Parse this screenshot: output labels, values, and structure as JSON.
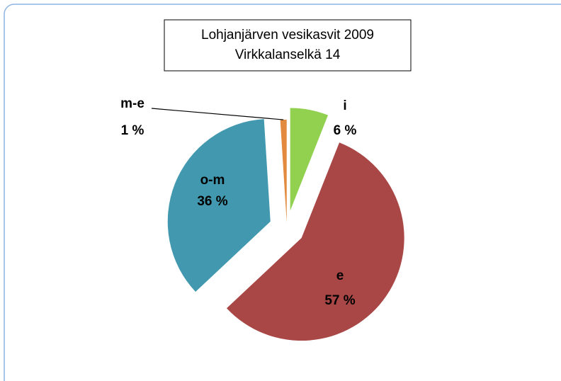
{
  "chart_data": {
    "type": "pie",
    "title": "Lohjanjärven vesikasvit 2009",
    "subtitle": "Virkkalanselkä 14",
    "categories": [
      "i",
      "e",
      "o-m",
      "m-e"
    ],
    "values": [
      6,
      57,
      36,
      1
    ],
    "value_labels": [
      "6 %",
      "57 %",
      "36 %",
      "1 %"
    ],
    "colors": [
      "#92d050",
      "#a84745",
      "#4198af",
      "#e28b3e"
    ]
  }
}
